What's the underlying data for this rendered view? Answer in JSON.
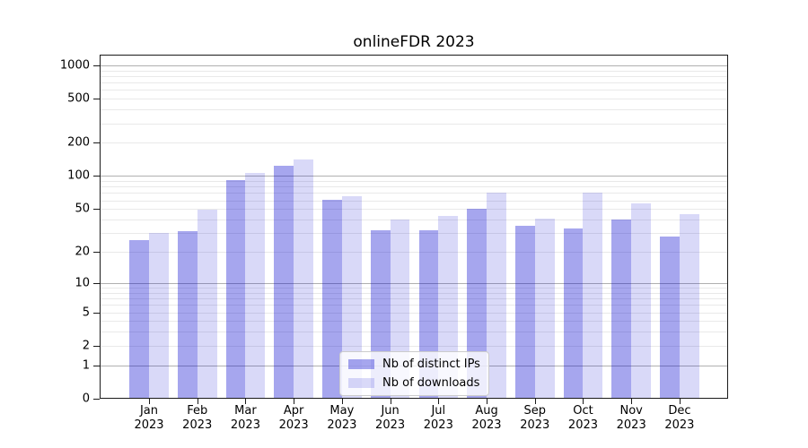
{
  "chart_data": {
    "type": "bar",
    "title": "onlineFDR 2023",
    "x_months": [
      "Jan",
      "Feb",
      "Mar",
      "Apr",
      "May",
      "Jun",
      "Jul",
      "Aug",
      "Sep",
      "Oct",
      "Nov",
      "Dec"
    ],
    "x_year": "2023",
    "series": [
      {
        "name": "Nb of distinct IPs",
        "color": "rgba(0,0,205,0.35)",
        "values": [
          26,
          31,
          92,
          124,
          61,
          32,
          32,
          50,
          35,
          33,
          40,
          28
        ]
      },
      {
        "name": "Nb of downloads",
        "color": "rgba(0,0,205,0.15)",
        "values": [
          30,
          49,
          106,
          142,
          66,
          40,
          43,
          70,
          41,
          70,
          56,
          45
        ]
      }
    ],
    "y_scale": "log1p",
    "y_ticks": [
      0,
      1,
      2,
      5,
      10,
      20,
      50,
      100,
      200,
      500,
      1000
    ],
    "y_major_gridlines": [
      1,
      10,
      100,
      1000
    ],
    "y_minor_gridlines": [
      2,
      3,
      4,
      5,
      6,
      7,
      8,
      9,
      20,
      30,
      40,
      50,
      60,
      70,
      80,
      90,
      200,
      300,
      400,
      500,
      600,
      700,
      800,
      900
    ],
    "ylim": [
      0,
      1250
    ],
    "grid": true,
    "legend_position": "lower center"
  },
  "colors": {
    "major_grid": "#b0b0b0",
    "minor_grid": "#e9e9e9",
    "frame": "#1a1a1a",
    "text": "#000000",
    "legend_bg": "rgba(255,255,255,0.8)",
    "legend_border": "#cccccc"
  }
}
